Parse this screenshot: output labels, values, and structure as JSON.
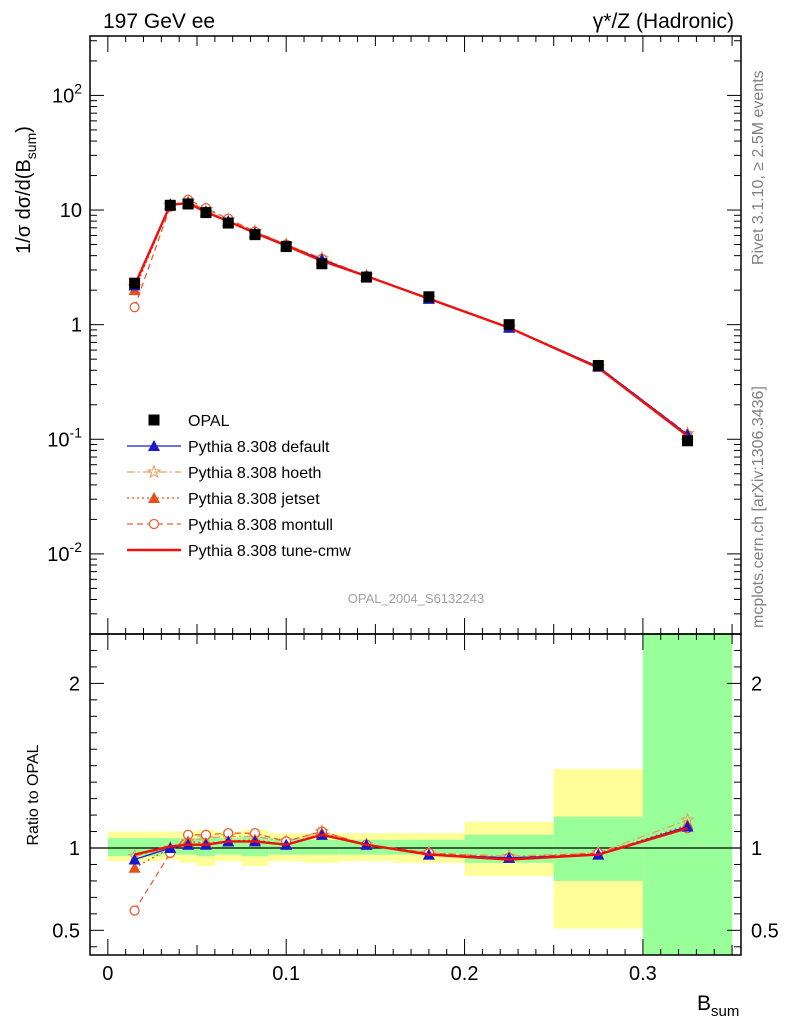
{
  "header": {
    "left_title": "197 GeV ee",
    "right_title": "γ*/Z (Hadronic)"
  },
  "side_labels": {
    "rivet": "Rivet 3.1.10, ≥ 2.5M events",
    "mcplots": "mcplots.cern.ch [arXiv:1306.3436]"
  },
  "watermark": "OPAL_2004_S6132243",
  "colors": {
    "data": "#000000",
    "default": "#1a1acc",
    "hoeth": "#e8a060",
    "jetset": "#e8501a",
    "montull": "#e8603a",
    "tune_cmw": "#ee1111",
    "band_inner": "#99ff99",
    "band_outer": "#ffff99"
  },
  "chart_data": [
    {
      "type": "line",
      "panel": "main",
      "ylabel": "1/σ dσ/d(B_sum)",
      "yscale": "log",
      "ylim": [
        0.002,
        330
      ],
      "xlim": [
        -0.01,
        0.355
      ],
      "y_ticks": [
        "10^-2",
        "10^-1",
        "1",
        "10",
        "10^2"
      ],
      "legend_position": "lower-left",
      "x": [
        0.015,
        0.035,
        0.045,
        0.055,
        0.0675,
        0.0825,
        0.1,
        0.12,
        0.145,
        0.18,
        0.225,
        0.275,
        0.325
      ],
      "series": [
        {
          "name": "OPAL",
          "key": "data",
          "marker": "square",
          "values": [
            2.3,
            11.0,
            11.3,
            9.5,
            7.7,
            6.1,
            4.8,
            3.4,
            2.6,
            1.75,
            1.0,
            0.44,
            0.097
          ]
        },
        {
          "name": "Pythia 8.308 default",
          "key": "default",
          "marker": "triangle",
          "style": "solid",
          "values": [
            2.2,
            11.2,
            11.5,
            9.7,
            8.0,
            6.3,
            4.9,
            3.7,
            2.65,
            1.68,
            0.94,
            0.43,
            0.11
          ]
        },
        {
          "name": "Pythia 8.308 hoeth",
          "key": "hoeth",
          "marker": "star",
          "style": "dashdot",
          "values": [
            2.15,
            11.0,
            11.8,
            10.1,
            8.2,
            6.5,
            5.0,
            3.8,
            2.68,
            1.7,
            0.95,
            0.43,
            0.112
          ]
        },
        {
          "name": "Pythia 8.308 jetset",
          "key": "jetset",
          "marker": "triangle",
          "style": "dotted",
          "values": [
            2.0,
            11.1,
            11.8,
            9.8,
            8.0,
            6.4,
            4.9,
            3.75,
            2.65,
            1.7,
            0.95,
            0.43,
            0.11
          ]
        },
        {
          "name": "Pythia 8.308 montull",
          "key": "montull",
          "marker": "circle",
          "style": "dashed",
          "values": [
            1.42,
            10.7,
            12.3,
            10.4,
            8.4,
            6.5,
            5.0,
            3.75,
            2.65,
            1.7,
            0.94,
            0.43,
            0.108
          ]
        },
        {
          "name": "Pythia 8.308 tune-cmw",
          "key": "tune_cmw",
          "marker": "none",
          "style": "solid-thick",
          "values": [
            2.2,
            11.1,
            11.5,
            9.6,
            8.0,
            6.3,
            4.9,
            3.6,
            2.65,
            1.68,
            0.94,
            0.42,
            0.107
          ]
        }
      ]
    },
    {
      "type": "line",
      "panel": "ratio",
      "ylabel": "Ratio to OPAL",
      "xlabel": "B_sum",
      "ylim": [
        0.35,
        2.3
      ],
      "xlim": [
        -0.01,
        0.355
      ],
      "y_ticks": [
        "0.5",
        "1",
        "2"
      ],
      "x_ticks": [
        "0",
        "0.1",
        "0.2",
        "0.3"
      ],
      "reference_line": 1,
      "bins": [
        {
          "lo": 0.0,
          "hi": 0.03,
          "inner": [
            0.95,
            1.06
          ],
          "outer": [
            0.92,
            1.1
          ]
        },
        {
          "lo": 0.03,
          "hi": 0.04,
          "inner": [
            0.96,
            1.06
          ],
          "outer": [
            0.93,
            1.1
          ]
        },
        {
          "lo": 0.04,
          "hi": 0.05,
          "inner": [
            0.96,
            1.06
          ],
          "outer": [
            0.91,
            1.1
          ]
        },
        {
          "lo": 0.05,
          "hi": 0.06,
          "inner": [
            0.95,
            1.07
          ],
          "outer": [
            0.89,
            1.11
          ]
        },
        {
          "lo": 0.06,
          "hi": 0.075,
          "inner": [
            0.96,
            1.06
          ],
          "outer": [
            0.92,
            1.1
          ]
        },
        {
          "lo": 0.075,
          "hi": 0.09,
          "inner": [
            0.95,
            1.07
          ],
          "outer": [
            0.89,
            1.11
          ]
        },
        {
          "lo": 0.09,
          "hi": 0.11,
          "inner": [
            0.96,
            1.06
          ],
          "outer": [
            0.92,
            1.09
          ]
        },
        {
          "lo": 0.11,
          "hi": 0.13,
          "inner": [
            0.96,
            1.05
          ],
          "outer": [
            0.91,
            1.09
          ]
        },
        {
          "lo": 0.13,
          "hi": 0.16,
          "inner": [
            0.96,
            1.05
          ],
          "outer": [
            0.92,
            1.09
          ]
        },
        {
          "lo": 0.16,
          "hi": 0.2,
          "inner": [
            0.96,
            1.05
          ],
          "outer": [
            0.91,
            1.09
          ]
        },
        {
          "lo": 0.2,
          "hi": 0.25,
          "inner": [
            0.91,
            1.08
          ],
          "outer": [
            0.83,
            1.16
          ]
        },
        {
          "lo": 0.25,
          "hi": 0.3,
          "inner": [
            0.8,
            1.19
          ],
          "outer": [
            0.51,
            1.48
          ]
        },
        {
          "lo": 0.3,
          "hi": 0.35,
          "inner": [
            0.35,
            2.3
          ],
          "outer": [
            0.35,
            2.3
          ]
        }
      ],
      "x": [
        0.015,
        0.035,
        0.045,
        0.055,
        0.0675,
        0.0825,
        0.1,
        0.12,
        0.145,
        0.18,
        0.225,
        0.275,
        0.325
      ],
      "series": [
        {
          "name": "Pythia 8.308 default",
          "key": "default",
          "values": [
            0.93,
            1.0,
            1.02,
            1.02,
            1.04,
            1.04,
            1.02,
            1.08,
            1.02,
            0.96,
            0.94,
            0.96,
            1.13
          ]
        },
        {
          "name": "Pythia 8.308 hoeth",
          "key": "hoeth",
          "values": [
            0.95,
            1.0,
            1.04,
            1.06,
            1.07,
            1.07,
            1.04,
            1.1,
            1.02,
            0.97,
            0.95,
            0.97,
            1.17
          ]
        },
        {
          "name": "Pythia 8.308 jetset",
          "key": "jetset",
          "values": [
            0.88,
            1.0,
            1.04,
            1.03,
            1.04,
            1.05,
            1.02,
            1.09,
            1.02,
            0.96,
            0.94,
            0.96,
            1.14
          ]
        },
        {
          "name": "Pythia 8.308 montull",
          "key": "montull",
          "values": [
            0.62,
            0.97,
            1.08,
            1.08,
            1.09,
            1.09,
            1.04,
            1.1,
            1.02,
            0.97,
            0.94,
            0.97,
            1.12
          ]
        },
        {
          "name": "Pythia 8.308 tune-cmw",
          "key": "tune_cmw",
          "values": [
            0.96,
            1.01,
            1.02,
            1.02,
            1.04,
            1.04,
            1.02,
            1.08,
            1.02,
            0.96,
            0.93,
            0.96,
            1.12
          ]
        }
      ]
    }
  ]
}
